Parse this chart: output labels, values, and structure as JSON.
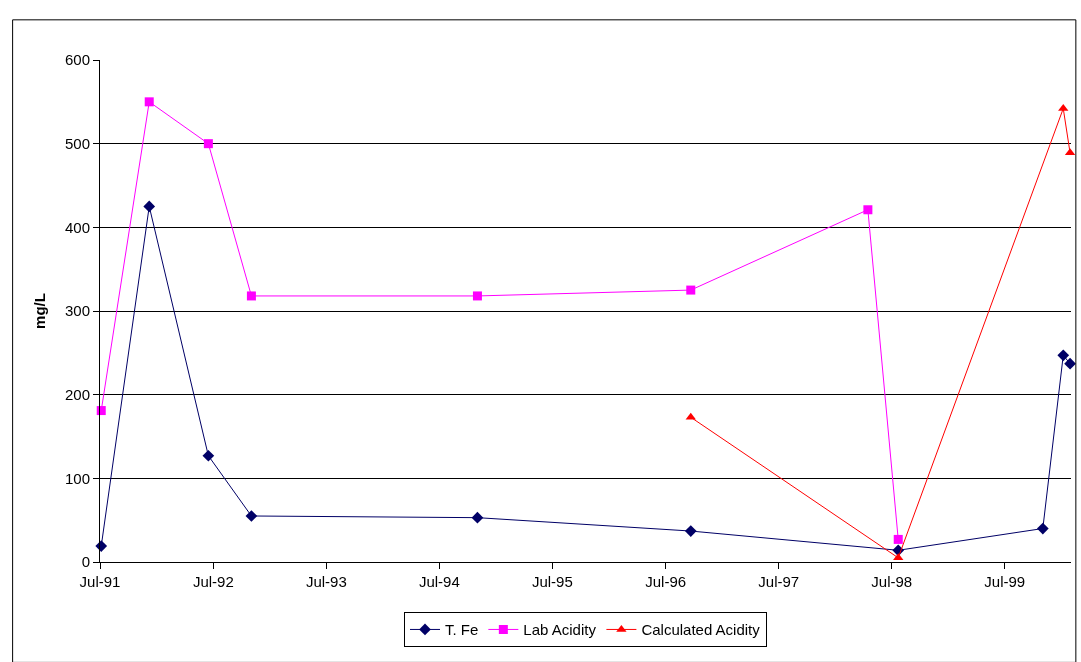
{
  "chart_data": {
    "type": "line",
    "ylabel": "mg/L",
    "ylim": [
      0,
      600
    ],
    "yticks": [
      0,
      100,
      200,
      300,
      400,
      500,
      600
    ],
    "xlim": [
      "1991-07-01",
      "2000-01-31"
    ],
    "xticks": [
      {
        "value": "1991-07-01",
        "label": "Jul-91"
      },
      {
        "value": "1992-07-01",
        "label": "Jul-92"
      },
      {
        "value": "1993-07-01",
        "label": "Jul-93"
      },
      {
        "value": "1994-07-01",
        "label": "Jul-94"
      },
      {
        "value": "1995-07-01",
        "label": "Jul-95"
      },
      {
        "value": "1996-07-01",
        "label": "Jul-96"
      },
      {
        "value": "1997-07-01",
        "label": "Jul-97"
      },
      {
        "value": "1998-07-01",
        "label": "Jul-98"
      },
      {
        "value": "1999-07-01",
        "label": "Jul-99"
      }
    ],
    "grid": "y",
    "legend": "bottom",
    "series": [
      {
        "name": "T. Fe",
        "color": "#000066",
        "marker": "diamond",
        "x": [
          "1991-07-05",
          "1991-12-07",
          "1992-06-15",
          "1992-11-01",
          "1994-11-01",
          "1996-09-20",
          "1998-07-22",
          "1999-11-01",
          "2000-01-06",
          "2000-01-28"
        ],
        "values": [
          19,
          425,
          127,
          55,
          53,
          37,
          14,
          40,
          247,
          237
        ]
      },
      {
        "name": "Lab Acidity",
        "color": "#ff00ff",
        "marker": "square",
        "x": [
          "1991-07-05",
          "1991-12-07",
          "1992-06-15",
          "1992-11-01",
          "1994-11-01",
          "1996-09-20",
          "1998-04-15",
          "1998-07-22"
        ],
        "values": [
          181,
          550,
          500,
          318,
          318,
          325,
          421,
          27
        ]
      },
      {
        "name": "Calculated Acidity",
        "color": "#ff0000",
        "marker": "triangle",
        "x": [
          "1996-09-20",
          "1998-07-22",
          "2000-01-06",
          "2000-01-28"
        ],
        "values": [
          173,
          5,
          542,
          489
        ]
      }
    ]
  }
}
